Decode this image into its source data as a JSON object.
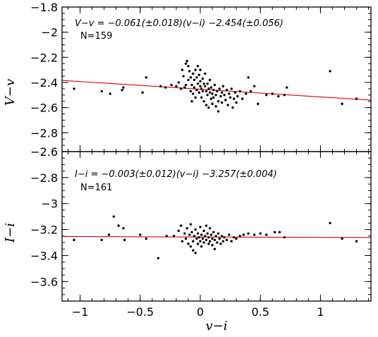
{
  "chart_data": [
    {
      "type": "scatter",
      "xlabel": "",
      "ylabel": "V−v",
      "xlim": [
        -1.15,
        1.42
      ],
      "ylim": [
        -2.95,
        -1.8
      ],
      "y_ticks": [
        -2.8,
        -2.6,
        -2.4,
        -2.2,
        -2.0,
        -1.8
      ],
      "y_tick_labels": [
        "−2.8",
        "−2.6",
        "−2.4",
        "−2.2",
        "−2",
        "−1.8"
      ],
      "equation": "V−v = −0.061(±0.018)(v−i) −2.454(±0.056)",
      "n_label": "N=159",
      "fit": {
        "slope": -0.061,
        "intercept": -2.454,
        "color": "#e00000"
      },
      "points": [
        [
          -1.05,
          -2.45
        ],
        [
          -0.82,
          -2.47
        ],
        [
          -0.75,
          -2.49
        ],
        [
          -0.65,
          -2.46
        ],
        [
          -0.64,
          -2.44
        ],
        [
          -0.48,
          -2.48
        ],
        [
          -0.45,
          -2.36
        ],
        [
          -0.33,
          -2.43
        ],
        [
          -0.29,
          -2.44
        ],
        [
          -0.24,
          -2.42
        ],
        [
          -0.2,
          -2.43
        ],
        [
          -0.18,
          -2.4
        ],
        [
          -0.16,
          -2.45
        ],
        [
          -0.15,
          -2.3
        ],
        [
          -0.14,
          -2.35
        ],
        [
          -0.13,
          -2.44
        ],
        [
          -0.12,
          -2.42
        ],
        [
          -0.12,
          -2.25
        ],
        [
          -0.11,
          -2.23
        ],
        [
          -0.1,
          -2.27
        ],
        [
          -0.1,
          -2.38
        ],
        [
          -0.09,
          -2.31
        ],
        [
          -0.08,
          -2.36
        ],
        [
          -0.08,
          -2.47
        ],
        [
          -0.07,
          -2.42
        ],
        [
          -0.07,
          -2.55
        ],
        [
          -0.06,
          -2.33
        ],
        [
          -0.06,
          -2.49
        ],
        [
          -0.05,
          -2.38
        ],
        [
          -0.05,
          -2.44
        ],
        [
          -0.04,
          -2.3
        ],
        [
          -0.04,
          -2.52
        ],
        [
          -0.03,
          -2.36
        ],
        [
          -0.03,
          -2.46
        ],
        [
          -0.02,
          -2.27
        ],
        [
          -0.02,
          -2.41
        ],
        [
          -0.01,
          -2.34
        ],
        [
          -0.01,
          -2.48
        ],
        [
          0.0,
          -2.39
        ],
        [
          0.0,
          -2.43
        ],
        [
          0.0,
          -2.3
        ],
        [
          0.01,
          -2.45
        ],
        [
          0.01,
          -2.52
        ],
        [
          0.02,
          -2.37
        ],
        [
          0.02,
          -2.47
        ],
        [
          0.03,
          -2.41
        ],
        [
          0.03,
          -2.55
        ],
        [
          0.04,
          -2.43
        ],
        [
          0.04,
          -2.33
        ],
        [
          0.05,
          -2.47
        ],
        [
          0.05,
          -2.58
        ],
        [
          0.06,
          -2.41
        ],
        [
          0.06,
          -2.5
        ],
        [
          0.07,
          -2.45
        ],
        [
          0.07,
          -2.6
        ],
        [
          0.08,
          -2.38
        ],
        [
          0.08,
          -2.48
        ],
        [
          0.09,
          -2.53
        ],
        [
          0.09,
          -2.44
        ],
        [
          0.1,
          -2.49
        ],
        [
          0.1,
          -2.57
        ],
        [
          0.11,
          -2.46
        ],
        [
          0.11,
          -2.52
        ],
        [
          0.12,
          -2.42
        ],
        [
          0.13,
          -2.5
        ],
        [
          0.13,
          -2.59
        ],
        [
          0.14,
          -2.47
        ],
        [
          0.15,
          -2.55
        ],
        [
          0.15,
          -2.63
        ],
        [
          0.16,
          -2.45
        ],
        [
          0.17,
          -2.51
        ],
        [
          0.18,
          -2.48
        ],
        [
          0.18,
          -2.56
        ],
        [
          0.19,
          -2.43
        ],
        [
          0.2,
          -2.5
        ],
        [
          0.21,
          -2.54
        ],
        [
          0.22,
          -2.46
        ],
        [
          0.23,
          -2.58
        ],
        [
          0.24,
          -2.49
        ],
        [
          0.25,
          -2.52
        ],
        [
          0.26,
          -2.45
        ],
        [
          0.27,
          -2.6
        ],
        [
          0.28,
          -2.53
        ],
        [
          0.29,
          -2.48
        ],
        [
          0.3,
          -2.56
        ],
        [
          0.31,
          -2.51
        ],
        [
          0.33,
          -2.47
        ],
        [
          0.35,
          -2.53
        ],
        [
          0.38,
          -2.49
        ],
        [
          0.4,
          -2.36
        ],
        [
          0.42,
          -2.47
        ],
        [
          0.45,
          -2.43
        ],
        [
          0.48,
          -2.57
        ],
        [
          0.55,
          -2.5
        ],
        [
          0.6,
          -2.49
        ],
        [
          0.65,
          -2.51
        ],
        [
          0.7,
          -2.5
        ],
        [
          0.72,
          -2.44
        ],
        [
          1.08,
          -2.31
        ],
        [
          1.18,
          -2.57
        ],
        [
          1.3,
          -2.53
        ]
      ]
    },
    {
      "type": "scatter",
      "xlabel": "v−i",
      "ylabel": "I−i",
      "xlim": [
        -1.15,
        1.42
      ],
      "ylim": [
        -3.75,
        -2.6
      ],
      "x_ticks": [
        -1.0,
        -0.5,
        0.0,
        0.5,
        1.0
      ],
      "x_tick_labels": [
        "−1",
        "−0.5",
        "0",
        "0.5",
        "1"
      ],
      "y_ticks": [
        -3.6,
        -3.4,
        -3.2,
        -3.0,
        -2.8,
        -2.6
      ],
      "y_tick_labels": [
        "−3.6",
        "−3.4",
        "−3.2",
        "−3",
        "−2.8",
        "−2.6"
      ],
      "equation": "I−i = −0.003(±0.012)(v−i) −3.257(±0.004)",
      "n_label": "N=161",
      "fit": {
        "slope": -0.003,
        "intercept": -3.257,
        "color": "#e00000"
      },
      "points": [
        [
          -1.05,
          -3.28
        ],
        [
          -0.82,
          -3.28
        ],
        [
          -0.76,
          -3.24
        ],
        [
          -0.72,
          -3.1
        ],
        [
          -0.68,
          -3.17
        ],
        [
          -0.64,
          -3.19
        ],
        [
          -0.63,
          -3.28
        ],
        [
          -0.5,
          -3.24
        ],
        [
          -0.45,
          -3.27
        ],
        [
          -0.35,
          -3.42
        ],
        [
          -0.28,
          -3.25
        ],
        [
          -0.22,
          -3.25
        ],
        [
          -0.18,
          -3.21
        ],
        [
          -0.16,
          -3.17
        ],
        [
          -0.15,
          -3.29
        ],
        [
          -0.13,
          -3.23
        ],
        [
          -0.12,
          -3.27
        ],
        [
          -0.11,
          -3.19
        ],
        [
          -0.1,
          -3.31
        ],
        [
          -0.09,
          -3.24
        ],
        [
          -0.08,
          -3.16
        ],
        [
          -0.08,
          -3.33
        ],
        [
          -0.07,
          -3.22
        ],
        [
          -0.06,
          -3.29
        ],
        [
          -0.06,
          -3.36
        ],
        [
          -0.05,
          -3.25
        ],
        [
          -0.04,
          -3.2
        ],
        [
          -0.04,
          -3.38
        ],
        [
          -0.03,
          -3.27
        ],
        [
          -0.02,
          -3.23
        ],
        [
          -0.02,
          -3.31
        ],
        [
          -0.01,
          -3.26
        ],
        [
          0.0,
          -3.18
        ],
        [
          0.0,
          -3.29
        ],
        [
          0.01,
          -3.24
        ],
        [
          0.01,
          -3.33
        ],
        [
          0.02,
          -3.27
        ],
        [
          0.03,
          -3.21
        ],
        [
          0.03,
          -3.3
        ],
        [
          0.04,
          -3.25
        ],
        [
          0.05,
          -3.17
        ],
        [
          0.05,
          -3.28
        ],
        [
          0.06,
          -3.23
        ],
        [
          0.07,
          -3.31
        ],
        [
          0.07,
          -3.26
        ],
        [
          0.08,
          -3.19
        ],
        [
          0.08,
          -3.29
        ],
        [
          0.09,
          -3.24
        ],
        [
          0.1,
          -3.32
        ],
        [
          0.1,
          -3.27
        ],
        [
          0.11,
          -3.22
        ],
        [
          0.12,
          -3.28
        ],
        [
          0.12,
          -3.35
        ],
        [
          0.13,
          -3.25
        ],
        [
          0.14,
          -3.3
        ],
        [
          0.15,
          -3.23
        ],
        [
          0.16,
          -3.27
        ],
        [
          0.17,
          -3.31
        ],
        [
          0.18,
          -3.25
        ],
        [
          0.19,
          -3.29
        ],
        [
          0.2,
          -3.26
        ],
        [
          0.22,
          -3.28
        ],
        [
          0.24,
          -3.24
        ],
        [
          0.26,
          -3.29
        ],
        [
          0.28,
          -3.26
        ],
        [
          0.3,
          -3.27
        ],
        [
          0.33,
          -3.25
        ],
        [
          0.36,
          -3.24
        ],
        [
          0.4,
          -3.23
        ],
        [
          0.45,
          -3.24
        ],
        [
          0.5,
          -3.23
        ],
        [
          0.55,
          -3.24
        ],
        [
          0.62,
          -3.22
        ],
        [
          0.66,
          -3.22
        ],
        [
          0.7,
          -3.26
        ],
        [
          1.08,
          -3.15
        ],
        [
          1.18,
          -3.27
        ],
        [
          1.3,
          -3.29
        ]
      ]
    }
  ]
}
